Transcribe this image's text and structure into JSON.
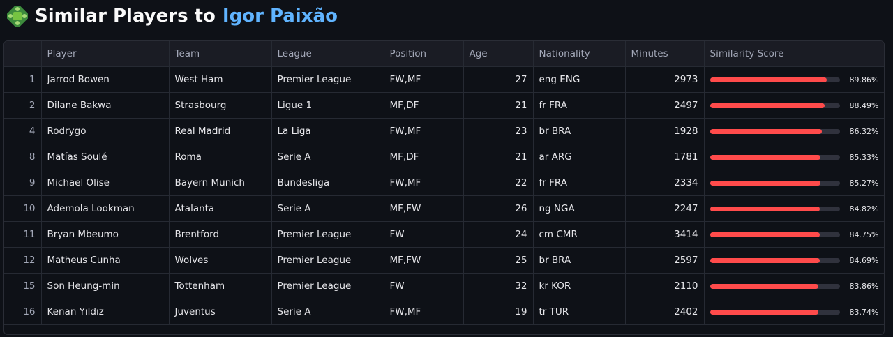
{
  "header": {
    "title_prefix": "Similar Players to",
    "player_name": "Igor Paixão",
    "icon": "puzzle-piece-icon"
  },
  "table": {
    "columns": [
      "",
      "Player",
      "Team",
      "League",
      "Position",
      "Age",
      "Nationality",
      "Minutes",
      "Similarity Score"
    ],
    "rows": [
      {
        "index": "1",
        "player": "Jarrod Bowen",
        "team": "West Ham",
        "league": "Premier League",
        "position": "FW,MF",
        "age": "27",
        "nationality": "eng ENG",
        "minutes": "2973",
        "score": 0.8986,
        "score_label": "89.86%"
      },
      {
        "index": "2",
        "player": "Dilane Bakwa",
        "team": "Strasbourg",
        "league": "Ligue 1",
        "position": "MF,DF",
        "age": "21",
        "nationality": "fr FRA",
        "minutes": "2497",
        "score": 0.8849,
        "score_label": "88.49%"
      },
      {
        "index": "4",
        "player": "Rodrygo",
        "team": "Real Madrid",
        "league": "La Liga",
        "position": "FW,MF",
        "age": "23",
        "nationality": "br BRA",
        "minutes": "1928",
        "score": 0.8632,
        "score_label": "86.32%"
      },
      {
        "index": "8",
        "player": "Matías Soulé",
        "team": "Roma",
        "league": "Serie A",
        "position": "MF,DF",
        "age": "21",
        "nationality": "ar ARG",
        "minutes": "1781",
        "score": 0.8533,
        "score_label": "85.33%"
      },
      {
        "index": "9",
        "player": "Michael Olise",
        "team": "Bayern Munich",
        "league": "Bundesliga",
        "position": "FW,MF",
        "age": "22",
        "nationality": "fr FRA",
        "minutes": "2334",
        "score": 0.8527,
        "score_label": "85.27%"
      },
      {
        "index": "10",
        "player": "Ademola Lookman",
        "team": "Atalanta",
        "league": "Serie A",
        "position": "MF,FW",
        "age": "26",
        "nationality": "ng NGA",
        "minutes": "2247",
        "score": 0.8482,
        "score_label": "84.82%"
      },
      {
        "index": "11",
        "player": "Bryan Mbeumo",
        "team": "Brentford",
        "league": "Premier League",
        "position": "FW",
        "age": "24",
        "nationality": "cm CMR",
        "minutes": "3414",
        "score": 0.8475,
        "score_label": "84.75%"
      },
      {
        "index": "12",
        "player": "Matheus Cunha",
        "team": "Wolves",
        "league": "Premier League",
        "position": "MF,FW",
        "age": "25",
        "nationality": "br BRA",
        "minutes": "2597",
        "score": 0.8469,
        "score_label": "84.69%"
      },
      {
        "index": "15",
        "player": "Son Heung-min",
        "team": "Tottenham",
        "league": "Premier League",
        "position": "FW",
        "age": "32",
        "nationality": "kr KOR",
        "minutes": "2110",
        "score": 0.8386,
        "score_label": "83.86%"
      },
      {
        "index": "16",
        "player": "Kenan Yıldız",
        "team": "Juventus",
        "league": "Serie A",
        "position": "FW,MF",
        "age": "19",
        "nationality": "tr TUR",
        "minutes": "2402",
        "score": 0.8374,
        "score_label": "83.74%"
      }
    ]
  },
  "colors": {
    "background": "#0e1117",
    "accent_name": "#60b4ff",
    "bar_fill": "#ff4b4b",
    "bar_track": "#30323d"
  }
}
